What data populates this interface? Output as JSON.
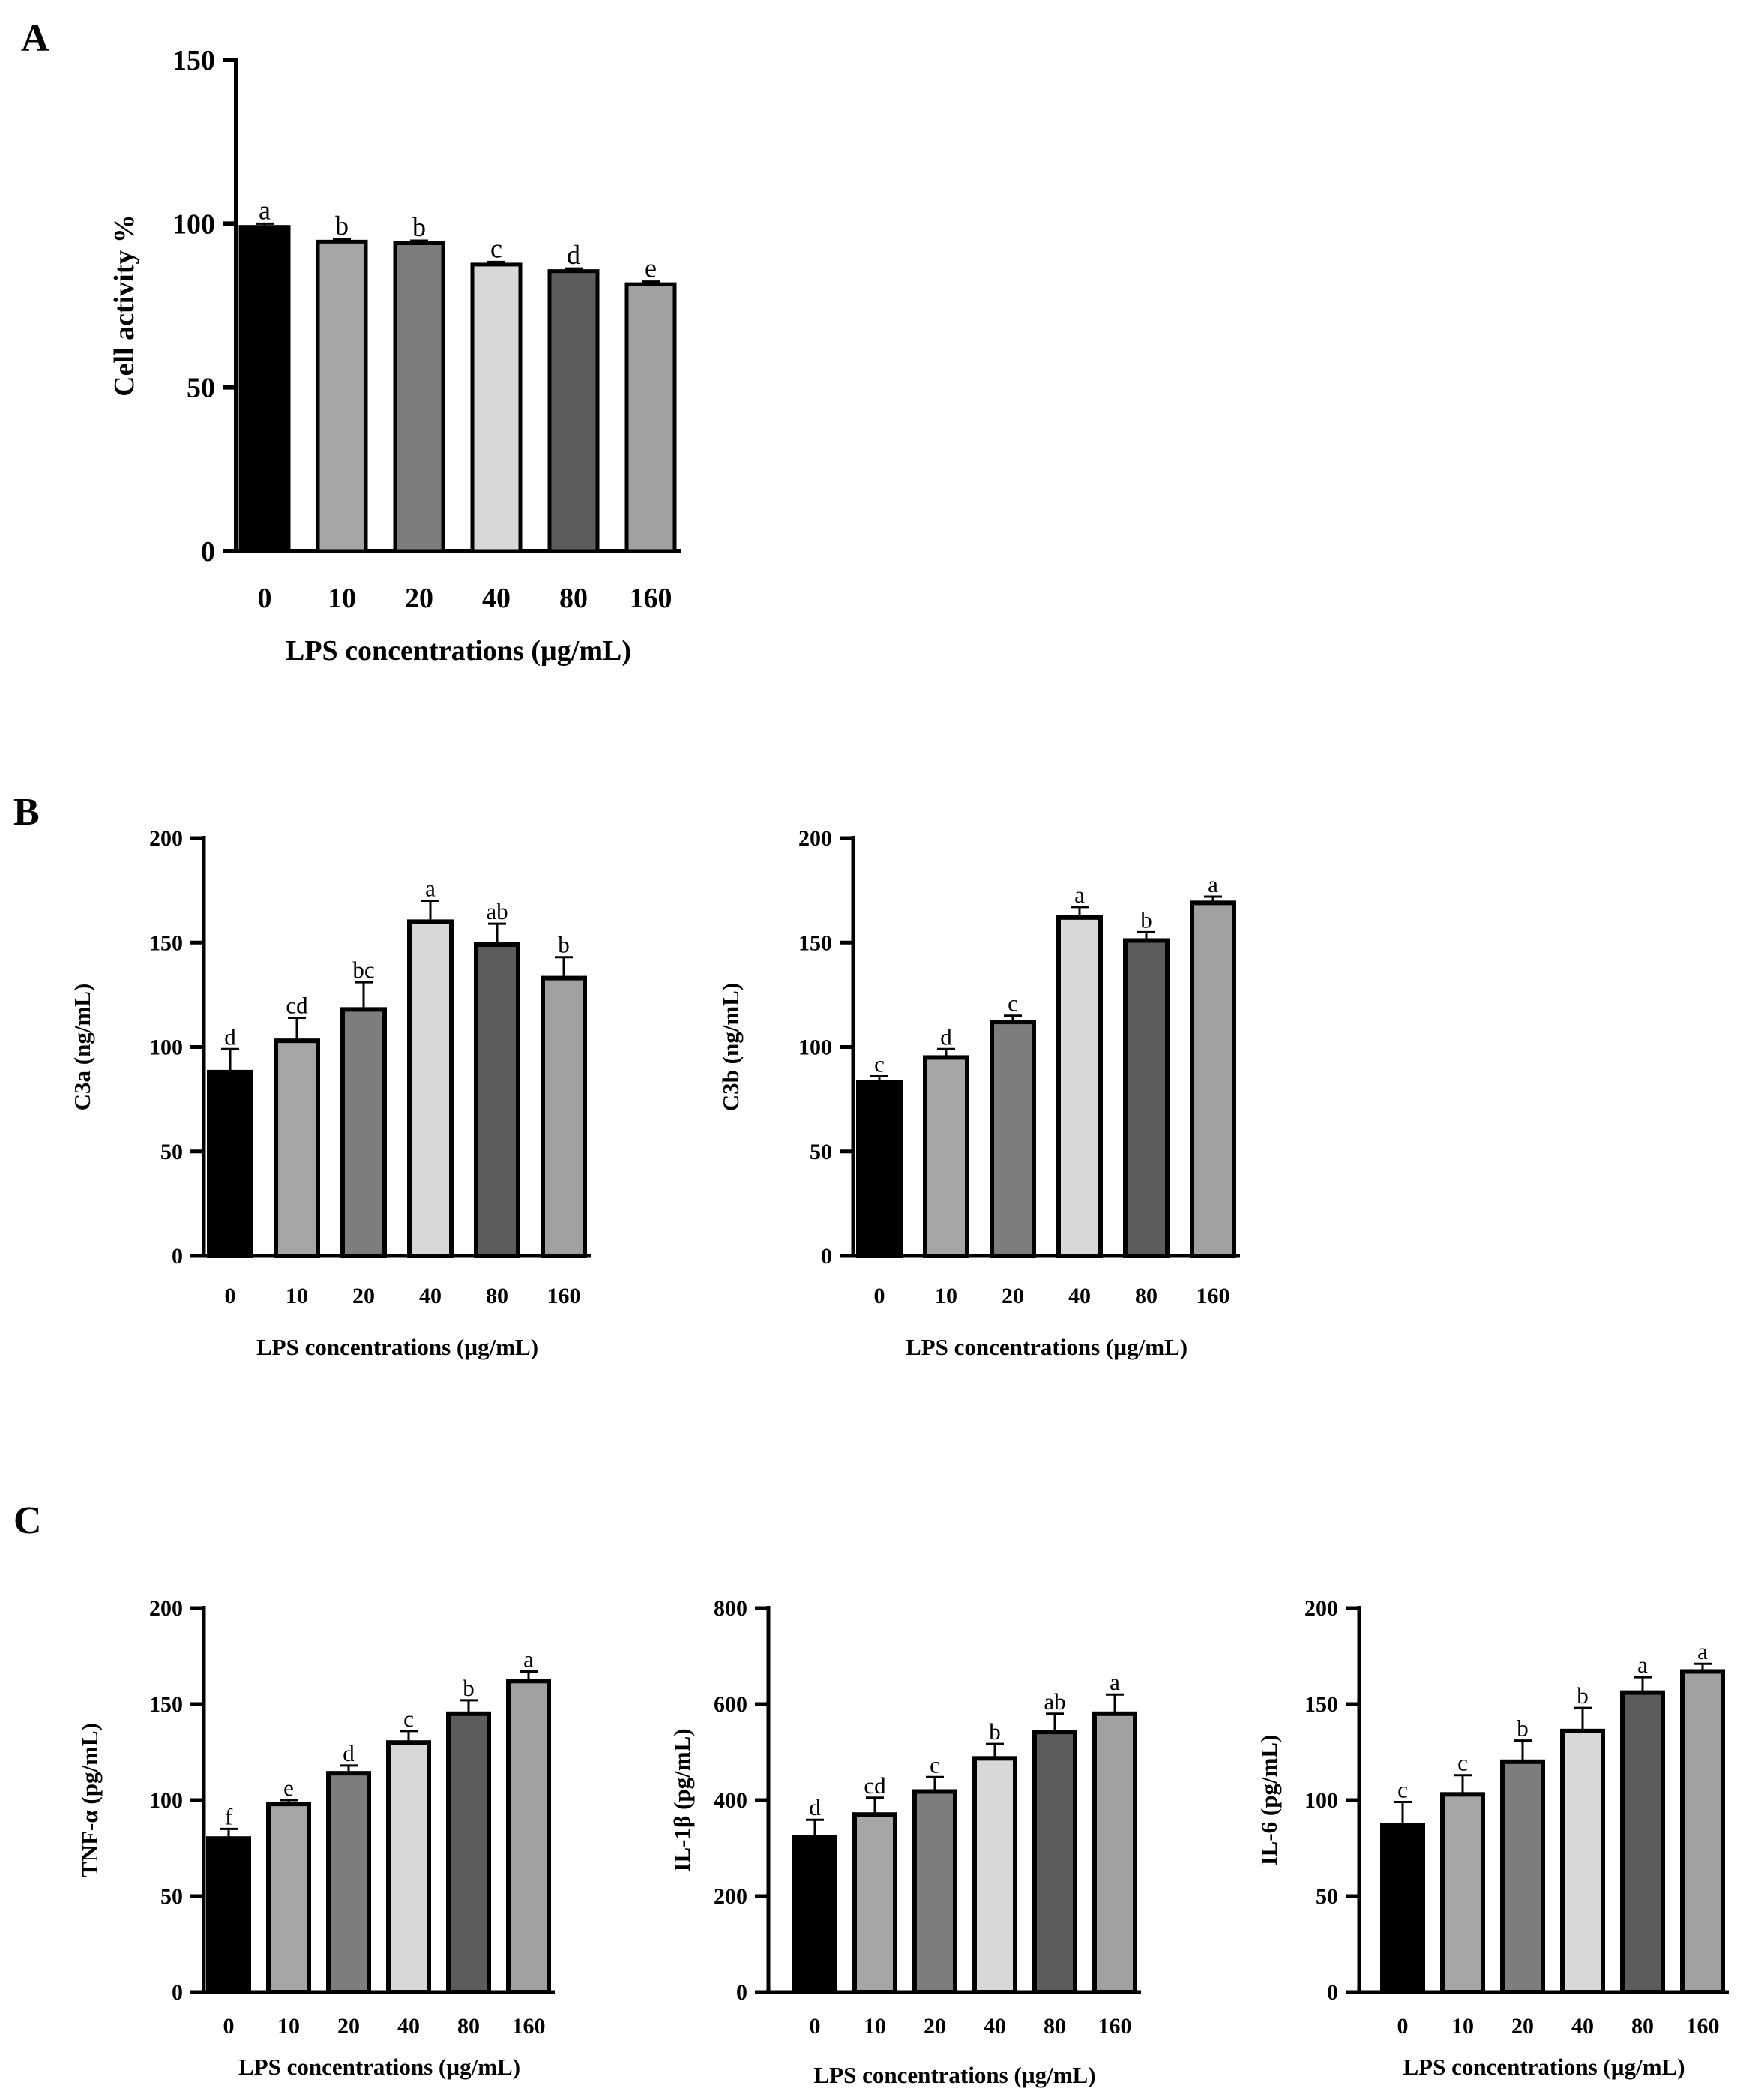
{
  "panels": [
    {
      "id": "A",
      "label": "A"
    },
    {
      "id": "B",
      "label": "B"
    },
    {
      "id": "C",
      "label": "C"
    }
  ],
  "chart_data": [
    {
      "panel": "A",
      "type": "bar",
      "categories": [
        "0",
        "10",
        "20",
        "40",
        "80",
        "160"
      ],
      "values": [
        99,
        94.5,
        94,
        87.5,
        85.5,
        81.5
      ],
      "errors": [
        1,
        0.8,
        0.8,
        0.8,
        0.8,
        0.8
      ],
      "letters": [
        "a",
        "b",
        "b",
        "c",
        "d",
        "e"
      ],
      "colors": [
        "#000000",
        "#a5a5a8",
        "#7d7d7d",
        "#d8d8d8",
        "#5c5c5c",
        "#a1a1a4"
      ],
      "ylabel": "Cell activity %",
      "xlabel": "LPS concentrations (µg/mL)",
      "ylim": [
        0,
        150
      ],
      "yticks": [
        0,
        50,
        100,
        150
      ]
    },
    {
      "panel": "B",
      "type": "bar",
      "categories": [
        "0",
        "10",
        "20",
        "40",
        "80",
        "160"
      ],
      "values": [
        88,
        103,
        118,
        160,
        149,
        133
      ],
      "errors": [
        11,
        11,
        13,
        10,
        10,
        10
      ],
      "letters": [
        "d",
        "cd",
        "bc",
        "a",
        "ab",
        "b"
      ],
      "colors": [
        "#000000",
        "#a5a5a8",
        "#7d7d7d",
        "#d8d8d8",
        "#5c5c5c",
        "#a1a1a4"
      ],
      "ylabel": "C3a (ng/mL)",
      "xlabel": "LPS concentrations (µg/mL)",
      "ylim": [
        0,
        200
      ],
      "yticks": [
        0,
        50,
        100,
        150,
        200
      ]
    },
    {
      "panel": "B",
      "type": "bar",
      "categories": [
        "0",
        "10",
        "20",
        "40",
        "80",
        "160"
      ],
      "values": [
        83,
        95,
        112,
        162,
        151,
        169
      ],
      "errors": [
        3,
        4,
        3,
        5,
        4,
        3
      ],
      "letters": [
        "c",
        "d",
        "c",
        "a",
        "b",
        "a"
      ],
      "colors": [
        "#000000",
        "#a5a5a8",
        "#7d7d7d",
        "#d8d8d8",
        "#5c5c5c",
        "#a1a1a4"
      ],
      "ylabel": "C3b (ng/mL)",
      "xlabel": "LPS concentrations (µg/mL)",
      "ylim": [
        0,
        200
      ],
      "yticks": [
        0,
        50,
        100,
        150,
        200
      ]
    },
    {
      "panel": "C",
      "type": "bar",
      "categories": [
        "0",
        "10",
        "20",
        "40",
        "80",
        "160"
      ],
      "values": [
        80,
        98,
        114,
        130,
        145,
        162
      ],
      "errors": [
        5,
        2,
        4,
        6,
        7,
        5
      ],
      "letters": [
        "f",
        "e",
        "d",
        "c",
        "b",
        "a"
      ],
      "colors": [
        "#000000",
        "#a5a5a8",
        "#7d7d7d",
        "#d8d8d8",
        "#5c5c5c",
        "#a1a1a4"
      ],
      "ylabel": "TNF-α (pg/mL)",
      "xlabel": "LPS concentrations (µg/mL)",
      "ylim": [
        0,
        200
      ],
      "yticks": [
        0,
        50,
        100,
        150,
        200
      ]
    },
    {
      "panel": "C",
      "type": "bar",
      "categories": [
        "0",
        "10",
        "20",
        "40",
        "80",
        "160"
      ],
      "values": [
        322,
        370,
        418,
        487,
        542,
        580
      ],
      "errors": [
        37,
        35,
        30,
        30,
        38,
        40
      ],
      "letters": [
        "d",
        "cd",
        "c",
        "b",
        "ab",
        "a"
      ],
      "colors": [
        "#000000",
        "#a5a5a8",
        "#7d7d7d",
        "#d8d8d8",
        "#5c5c5c",
        "#a1a1a4"
      ],
      "ylabel": "IL-1β (pg/mL)",
      "xlabel": "LPS concentrations (µg/mL)",
      "ylim": [
        0,
        800
      ],
      "yticks": [
        0,
        200,
        400,
        600,
        800
      ]
    },
    {
      "panel": "C",
      "type": "bar",
      "categories": [
        "0",
        "10",
        "20",
        "40",
        "80",
        "160"
      ],
      "values": [
        87,
        103,
        120,
        136,
        156,
        167
      ],
      "errors": [
        12,
        10,
        11,
        12,
        8,
        4
      ],
      "letters": [
        "c",
        "c",
        "b",
        "b",
        "a",
        "a"
      ],
      "colors": [
        "#000000",
        "#a5a5a8",
        "#7d7d7d",
        "#d8d8d8",
        "#5c5c5c",
        "#a1a1a4"
      ],
      "ylabel": "IL-6 (pg/mL)",
      "xlabel": "LPS concentrations (µg/mL)",
      "ylim": [
        0,
        200
      ],
      "yticks": [
        0,
        50,
        100,
        150,
        200
      ]
    }
  ]
}
